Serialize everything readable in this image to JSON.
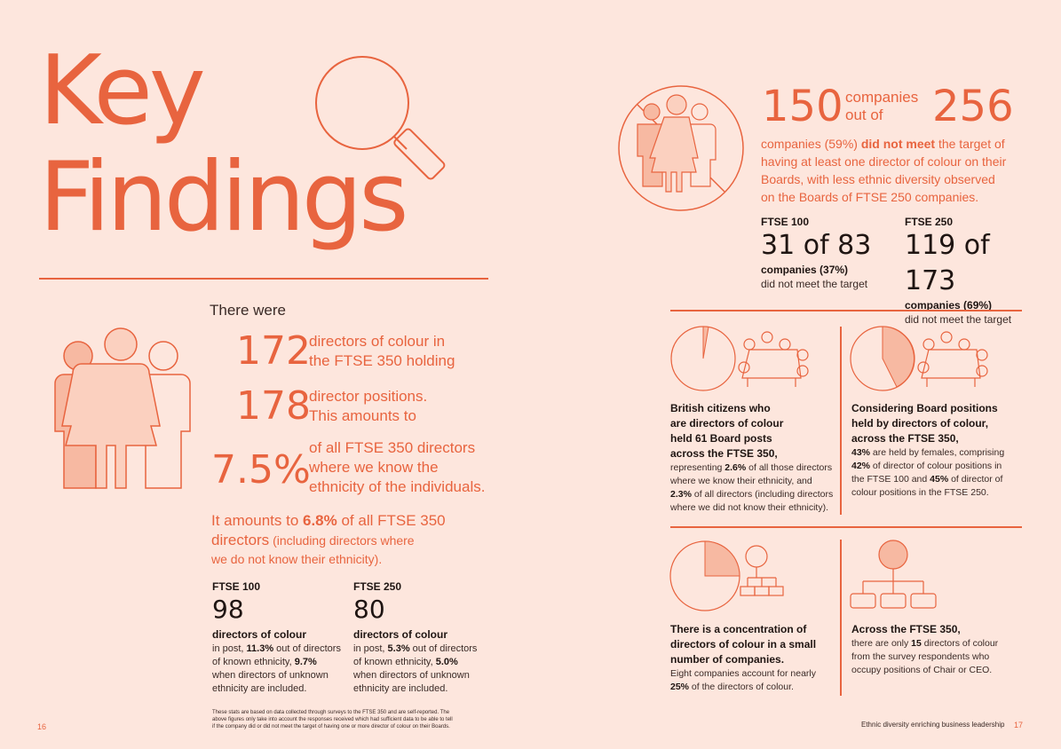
{
  "title_line1": "Key",
  "title_line2": "Findings",
  "left": {
    "intro": "There were",
    "stat1_value": "172",
    "stat1_text_l1": "directors of colour in",
    "stat1_text_l2": "the FTSE 350 holding",
    "stat2_value": "178",
    "stat2_text_l1": "director positions.",
    "stat2_text_l2": "This amounts to",
    "stat3_value": "7.5%",
    "stat3_text_l1": "of all FTSE 350 directors",
    "stat3_text_l2": "where we know the",
    "stat3_text_l3": "ethnicity of the individuals.",
    "amount_pre": "It amounts to ",
    "amount_bold": "6.8%",
    "amount_post": " of all FTSE 350",
    "amount_l2a": "directors",
    "amount_l2b": " (including directors where",
    "amount_l3": "we do not know their ethnicity).",
    "ftse100": {
      "label": "FTSE 100",
      "value": "98",
      "sub": "directors of colour",
      "l1a": "in post, ",
      "l1b": "11.3%",
      "l1c": " out of directors",
      "l2a": "of known ethnicity, ",
      "l2b": "9.7%",
      "l3": "when directors of unknown",
      "l4": "ethnicity are included."
    },
    "ftse250": {
      "label": "FTSE 250",
      "value": "80",
      "sub": "directors of colour",
      "l1a": "in post, ",
      "l1b": "5.3%",
      "l1c": " out of directors",
      "l2a": "of known ethnicity, ",
      "l2b": "5.0%",
      "l3": "when directors of unknown",
      "l4": "ethnicity are included."
    },
    "footnote_l1": "These stats are based on data collected through surveys to the FTSE 350 and are self-reported. The",
    "footnote_l2": "above figures only take into account the responses received which had sufficient data to be able to tell",
    "footnote_l3": "if the company did or did not meet the target of having one or more director of colour on their Boards.",
    "page_number": "16"
  },
  "right": {
    "n1": "150",
    "companies": "companies",
    "out_of": "out of",
    "n2": "256",
    "desc_a": "companies (59%) ",
    "desc_b": "did not meet",
    "desc_c": " the target of",
    "desc_l2": "having at least one director of colour on their",
    "desc_l3": "Boards, with less ethnic diversity observed",
    "desc_l4": "on the Boards of FTSE 250 companies.",
    "ftse100": {
      "label": "FTSE 100",
      "value": "31 of 83",
      "sub": "companies (37%)",
      "note": "did not meet the target"
    },
    "ftse250": {
      "label": "FTSE 250",
      "value": "119 of 173",
      "sub": "companies (69%)",
      "note": "did not meet the target"
    },
    "box1": {
      "b1": "British citizens who",
      "b2": "are directors of colour",
      "b3": "held 61 Board posts",
      "b4": "across the FTSE 350,",
      "t1a": "representing ",
      "t1b": "2.6%",
      "t1c": " of all those directors",
      "t2": "where we know their ethnicity, and",
      "t3a": "2.3%",
      "t3b": " of all directors (including directors",
      "t4": "where we did not know their ethnicity)."
    },
    "box2": {
      "b1": "Considering Board positions",
      "b2": "held by directors of colour,",
      "b3": "across the FTSE 350,",
      "t1a": "43%",
      "t1b": " are held by females, comprising",
      "t2a": "42%",
      "t2b": " of director of colour positions in",
      "t3a": "the FTSE 100 and ",
      "t3b": "45%",
      "t3c": " of director of",
      "t4": "colour positions in the FTSE 250."
    },
    "box3": {
      "b1": "There is a concentration of",
      "b2": "directors of colour in a small",
      "b3": "number of companies.",
      "t1": "Eight companies account for nearly",
      "t2a": "25%",
      "t2b": " of the directors of colour."
    },
    "box4": {
      "b1": "Across the FTSE 350,",
      "t1a": "there are only ",
      "t1b": "15",
      "t1c": " directors of colour",
      "t2": "from the survey respondents who",
      "t3": "occupy positions of Chair or CEO."
    },
    "footer_title": "Ethnic diversity enriching business leadership",
    "page_number": "17"
  },
  "colors": {
    "accent": "#e8643f",
    "background": "#fde6dd",
    "fill_light": "#f7b9a2"
  },
  "icons": [
    "magnifier-icon",
    "people-group-icon",
    "no-people-icon",
    "pie-chart-icon",
    "meeting-table-icon",
    "org-chart-icon"
  ]
}
